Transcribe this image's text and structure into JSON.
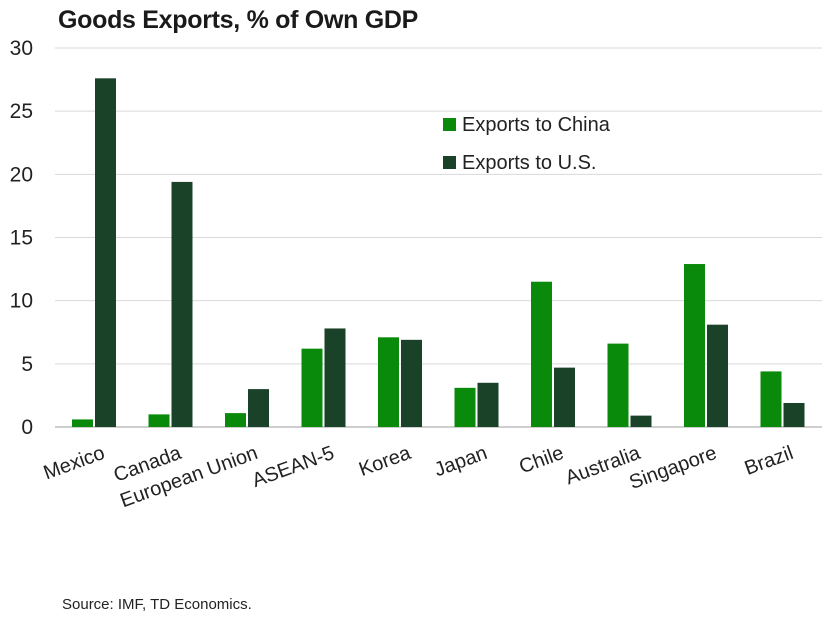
{
  "chart_data": {
    "type": "bar",
    "title": "Goods Exports, % of Own GDP",
    "categories": [
      "Mexico",
      "Canada",
      "European Union",
      "ASEAN-5",
      "Korea",
      "Japan",
      "Chile",
      "Australia",
      "Singapore",
      "Brazil"
    ],
    "series": [
      {
        "name": "Exports to China",
        "color": "#0a8a0a",
        "values": [
          0.6,
          1.0,
          1.1,
          6.2,
          7.1,
          3.1,
          11.5,
          6.6,
          12.9,
          4.4
        ]
      },
      {
        "name": "Exports to U.S.",
        "color": "#1a4228",
        "values": [
          27.6,
          19.4,
          3.0,
          7.8,
          6.9,
          3.5,
          4.7,
          0.9,
          8.1,
          1.9
        ]
      }
    ],
    "yticks": [
      0,
      5,
      10,
      15,
      20,
      25,
      30
    ],
    "ylim": [
      0,
      30
    ],
    "xlabel": "",
    "ylabel": "",
    "grid": true,
    "legend_position": "top-center"
  },
  "source": "Source: IMF, TD Economics."
}
